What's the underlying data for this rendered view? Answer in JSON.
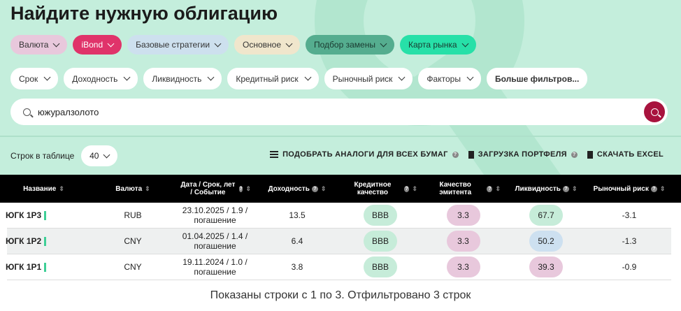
{
  "title": "Найдите нужную облигацию",
  "presets": [
    {
      "label": "Валюта",
      "bg": "#e8c8dc",
      "color": "#333"
    },
    {
      "label": "iBond",
      "bg": "#e0336a",
      "color": "#fff"
    },
    {
      "label": "Базовые стратегии",
      "bg": "#cde0ee",
      "color": "#333"
    },
    {
      "label": "Основное",
      "bg": "#f0e6cc",
      "color": "#333"
    },
    {
      "label": "Подбор замены",
      "bg": "#55ad8f",
      "color": "#1a3a30"
    },
    {
      "label": "Карта рынка",
      "bg": "#27e0a8",
      "color": "#1a3a30"
    }
  ],
  "filters": [
    "Срок",
    "Доходность",
    "Ликвидность",
    "Кредитный риск",
    "Рыночный риск",
    "Факторы"
  ],
  "more_filters": "Больше фильтров...",
  "search": {
    "value": "южуралзолото"
  },
  "rows_label": "Строк в таблице",
  "rows_value": "40",
  "actions": {
    "analogs": "ПОДОБРАТЬ АНАЛОГИ ДЛЯ ВСЕХ БУМАГ",
    "portfolio": "ЗАГРУЗКА ПОРТФЕЛЯ",
    "excel": "СКАЧАТЬ EXCEL"
  },
  "columns": [
    "Название",
    "Валюта",
    "Дата / Срок, лет / Событие",
    "Доходность",
    "Кредитное качество",
    "Качество эмитента",
    "Ликвидность",
    "Рыночный риск"
  ],
  "rows": [
    {
      "name": "ЮГК 1Р3",
      "currency": "RUB",
      "date": "23.10.2025 / 1.9 /",
      "event": "погашение",
      "yield": "13.5",
      "credit": "BBB",
      "issuer": "3.3",
      "liquidity": "67.7",
      "liq_color": "#c6ecd9",
      "market": "-3.1"
    },
    {
      "name": "ЮГК 1Р2",
      "currency": "CNY",
      "date": "01.04.2025 / 1.4 /",
      "event": "погашение",
      "yield": "6.4",
      "credit": "BBB",
      "issuer": "3.3",
      "liquidity": "50.2",
      "liq_color": "#cde0f0",
      "market": "-1.3"
    },
    {
      "name": "ЮГК 1Р1",
      "currency": "CNY",
      "date": "19.11.2024 / 1.0 /",
      "event": "погашение",
      "yield": "3.8",
      "credit": "BBB",
      "issuer": "3.3",
      "liquidity": "39.3",
      "liq_color": "#e8c8dc",
      "market": "-0.9"
    }
  ],
  "colors": {
    "credit": "#c6ecd9",
    "issuer": "#e8c8dc"
  },
  "footer": "Показаны строки с 1 по 3. Отфильтровано 3 строк"
}
